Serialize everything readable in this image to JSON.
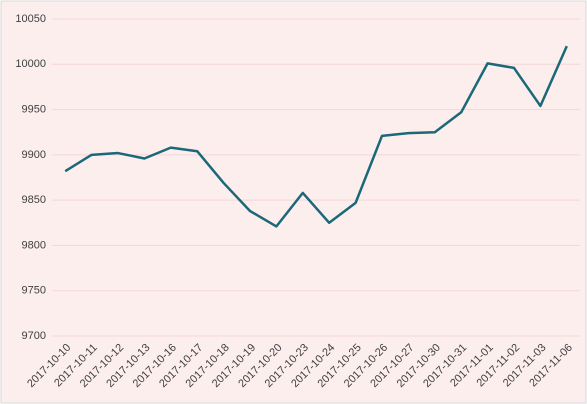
{
  "chart_data": {
    "type": "line",
    "categories": [
      "2017-10-10",
      "2017-10-11",
      "2017-10-12",
      "2017-10-13",
      "2017-10-16",
      "2017-10-17",
      "2017-10-18",
      "2017-10-19",
      "2017-10-20",
      "2017-10-23",
      "2017-10-24",
      "2017-10-25",
      "2017-10-26",
      "2017-10-27",
      "2017-10-30",
      "2017-10-31",
      "2017-11-01",
      "2017-11-02",
      "2017-11-03",
      "2017-11-06"
    ],
    "values": [
      9882,
      9900,
      9902,
      9896,
      9908,
      9904,
      9869,
      9838,
      9821,
      9858,
      9825,
      9847,
      9921,
      9924,
      9925,
      9947,
      10001,
      9996,
      9954,
      10020
    ],
    "color": "#1b6878",
    "ylim": [
      9700,
      10050
    ],
    "yticks": [
      9700,
      9750,
      9800,
      9850,
      9900,
      9950,
      10000,
      10050
    ],
    "grid": true
  }
}
